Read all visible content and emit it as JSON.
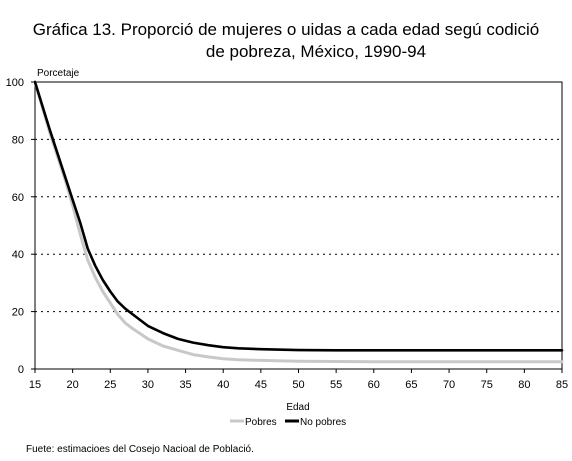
{
  "chart_data": {
    "type": "line",
    "title_line1": "Gráfica 13. Proporció de mujeres o uidas a cada edad segú codició",
    "title_line2": "de pobreza, México, 1990-94",
    "ylabel": "Porcetaje",
    "xlabel": "Edad",
    "xlim": [
      15,
      85
    ],
    "ylim": [
      0,
      100
    ],
    "x_ticks": [
      15,
      20,
      25,
      30,
      35,
      40,
      45,
      50,
      55,
      60,
      65,
      70,
      75,
      80,
      85
    ],
    "y_ticks": [
      0,
      20,
      40,
      60,
      80,
      100
    ],
    "grid": "horizontal dotted",
    "legend_position": "bottom",
    "x": [
      15,
      17,
      19,
      20,
      21,
      22,
      23,
      24,
      25,
      26,
      27,
      28,
      30,
      32,
      34,
      36,
      38,
      40,
      42,
      45,
      50,
      55,
      60,
      65,
      70,
      75,
      80,
      85
    ],
    "series": [
      {
        "name": "Pobres",
        "color": "#c8c8c8",
        "values": [
          100,
          82,
          66,
          57,
          47,
          38,
          32,
          27,
          23,
          19,
          16,
          14,
          10.5,
          8,
          6.5,
          5,
          4.2,
          3.6,
          3.2,
          3.0,
          2.7,
          2.6,
          2.5,
          2.5,
          2.5,
          2.5,
          2.5,
          2.5
        ]
      },
      {
        "name": "No pobres",
        "color": "#000000",
        "values": [
          100,
          83,
          67,
          59,
          51,
          42,
          36,
          31,
          27,
          23.5,
          21,
          19,
          15,
          12.5,
          10.5,
          9.2,
          8.3,
          7.6,
          7.2,
          6.9,
          6.6,
          6.5,
          6.5,
          6.5,
          6.5,
          6.5,
          6.5,
          6.5
        ]
      }
    ]
  },
  "source": "Fuete: estimacioes del Cosejo Nacioal de Població."
}
